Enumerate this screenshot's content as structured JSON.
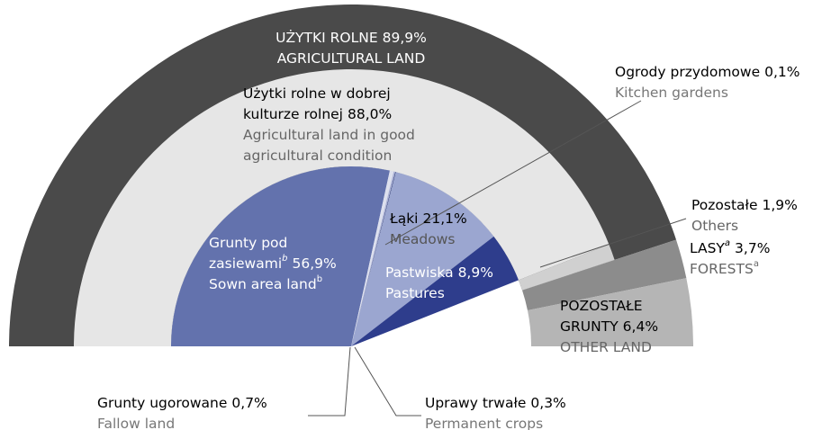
{
  "chart_data": {
    "type": "sunburst",
    "rings": [
      {
        "segments": [
          {
            "name": [
              "UŻYTKI ROLNE"
            ],
            "en": [
              "AGRICULTURAL LAND"
            ],
            "value": 89.9,
            "value_label": "89,9%",
            "color": "#4a4a4a"
          },
          {
            "name": [
              "LASY"
            ],
            "sup": "a",
            "en": [
              "FORESTS"
            ],
            "en_sup": "a",
            "value": 3.7,
            "value_label": "3,7%",
            "color": "#8c8c8c"
          },
          {
            "name": [
              "POZOSTAŁE",
              "GRUNTY"
            ],
            "en": [
              "OTHER LAND"
            ],
            "value": 6.4,
            "value_label": "6,4%",
            "color": "#b5b5b5"
          }
        ]
      },
      {
        "segments": [
          {
            "name": [
              "Użytki rolne w dobrej",
              "kulturze rolnej"
            ],
            "en": [
              "Agricultural land in good",
              "agricultural condition"
            ],
            "value": 88.0,
            "value_label": "88,0%",
            "color": "#e6e6e6"
          },
          {
            "name": [
              "Pozostałe"
            ],
            "en": [
              "Others"
            ],
            "value": 1.9,
            "value_label": "1,9%",
            "color": "#d0d0d0"
          }
        ]
      },
      {
        "segments": [
          {
            "name": [
              "Grunty pod",
              "zasiewami"
            ],
            "sup": "b",
            "en": [
              "Sown area land"
            ],
            "en_sup": "b",
            "value": 56.9,
            "value_label": "56,9%",
            "color": "#6372ad"
          },
          {
            "name": [
              "Grunty ugorowane"
            ],
            "en": [
              "Fallow land"
            ],
            "value": 0.7,
            "value_label": "0,7%",
            "color": "#dde0ee"
          },
          {
            "name": [
              "Uprawy trwałe"
            ],
            "en": [
              "Permanent crops"
            ],
            "value": 0.3,
            "value_label": "0,3%",
            "color": "#a9b0d4"
          },
          {
            "name": [
              "Ogrody przydomowe"
            ],
            "en": [
              "Kitchen gardens"
            ],
            "value": 0.1,
            "value_label": "0,1%",
            "color": "#1c2a6b"
          },
          {
            "name": [
              "Łąki"
            ],
            "en": [
              "Meadows"
            ],
            "value": 21.1,
            "value_label": "21,1%",
            "color": "#9ba6d0"
          },
          {
            "name": [
              "Pastwiska"
            ],
            "en": [
              "Pastures"
            ],
            "value": 8.9,
            "value_label": "8,9%",
            "color": "#2e3d8c"
          }
        ]
      }
    ]
  }
}
